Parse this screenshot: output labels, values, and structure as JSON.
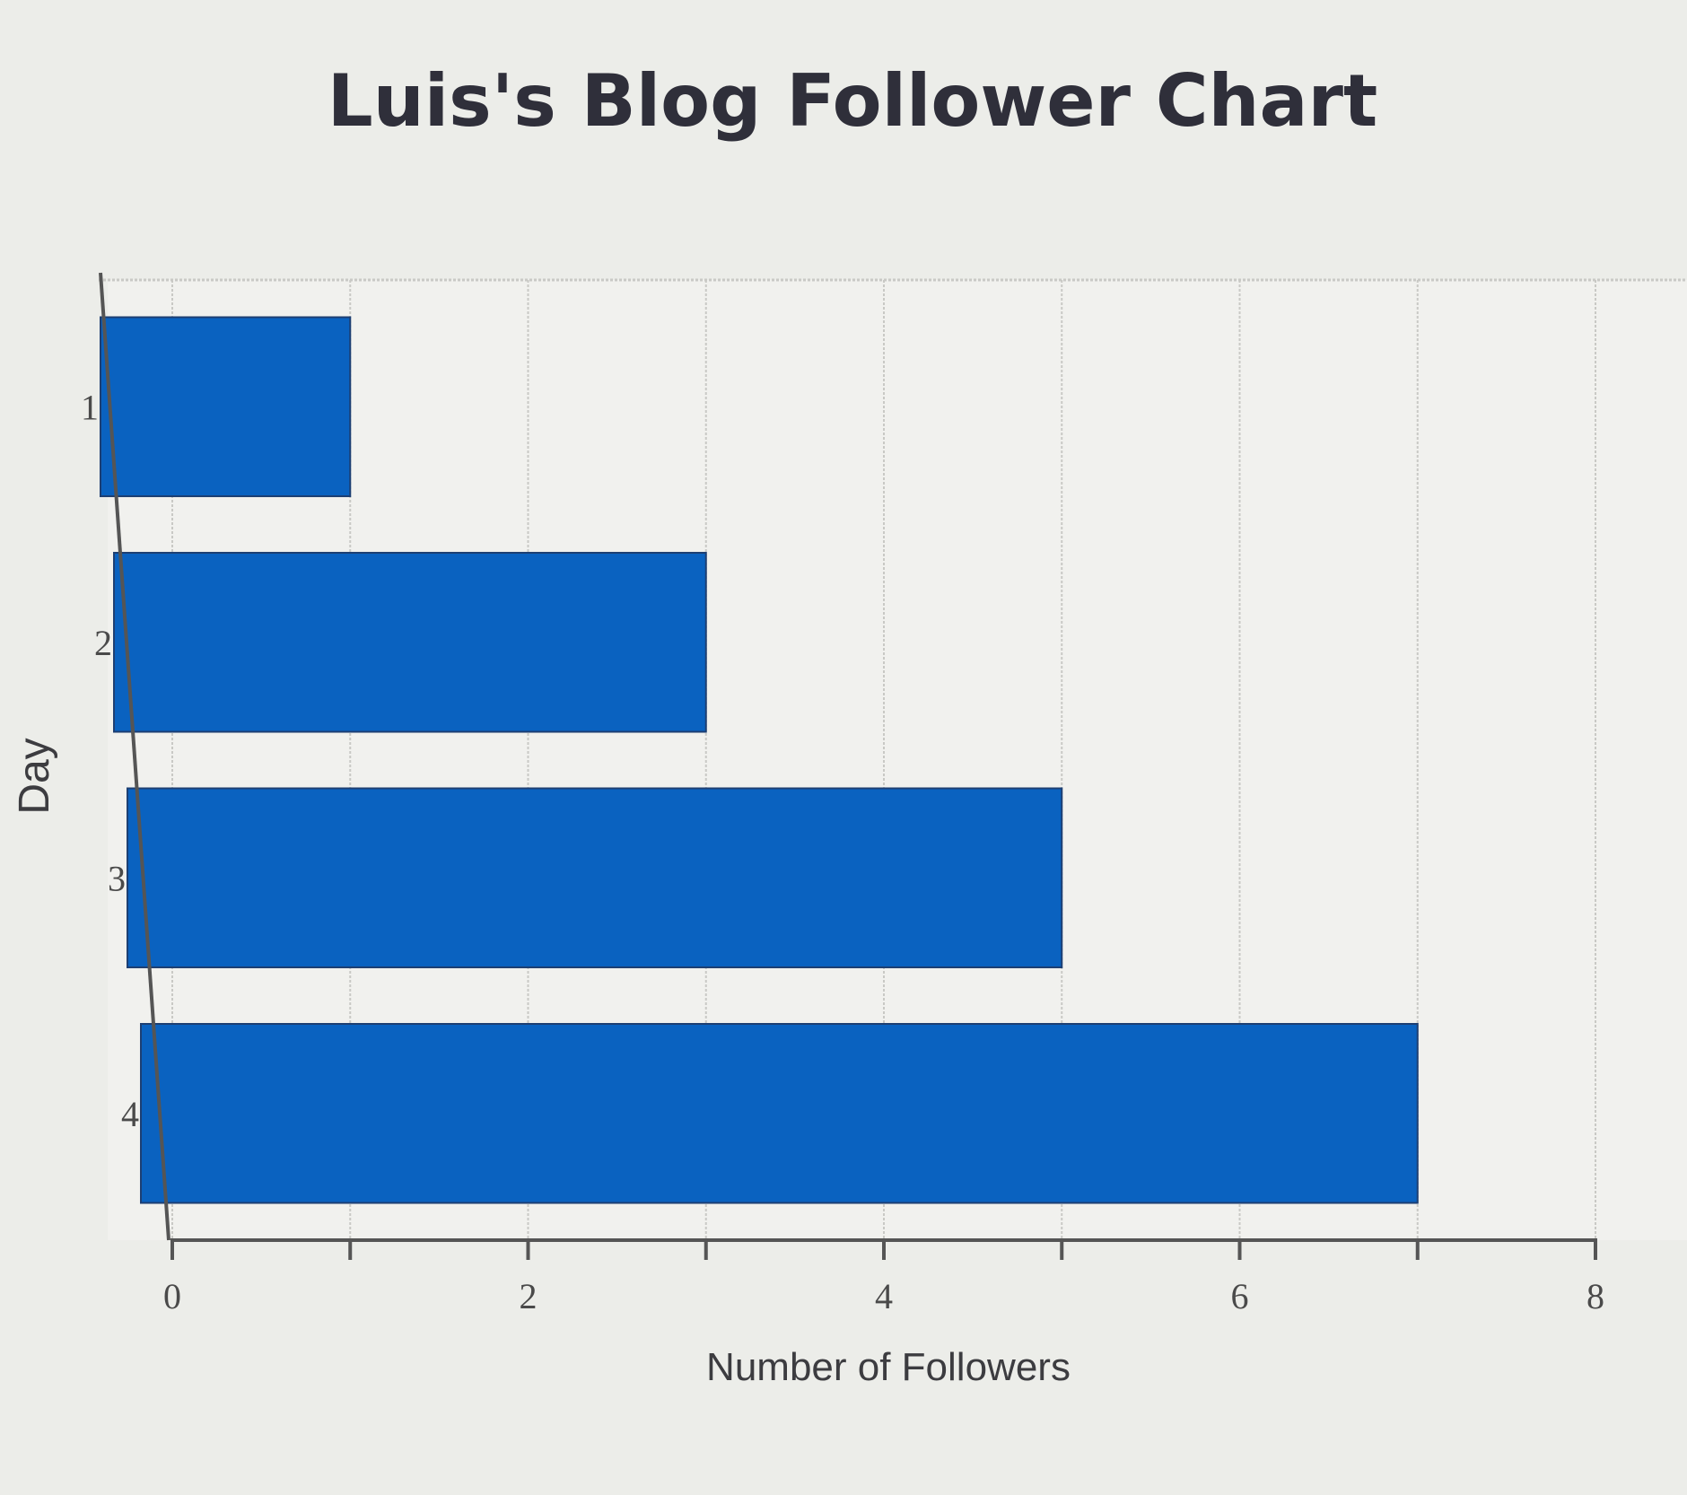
{
  "chart_data": {
    "type": "bar",
    "orientation": "horizontal",
    "title": "Luis's Blog Follower Chart",
    "xlabel": "Number of Followers",
    "ylabel": "Day",
    "categories": [
      "1",
      "2",
      "3",
      "4"
    ],
    "values": [
      1,
      3,
      5,
      7
    ],
    "xlim": [
      0,
      8
    ],
    "xticks": [
      "0",
      "2",
      "4",
      "6",
      "8"
    ],
    "grid": true,
    "bar_color": "#0a62c0"
  },
  "colors": {
    "background": "#ecede9",
    "plot_background": "#f1f1ee",
    "grid": "#c9c9c5",
    "axis": "#555555"
  }
}
